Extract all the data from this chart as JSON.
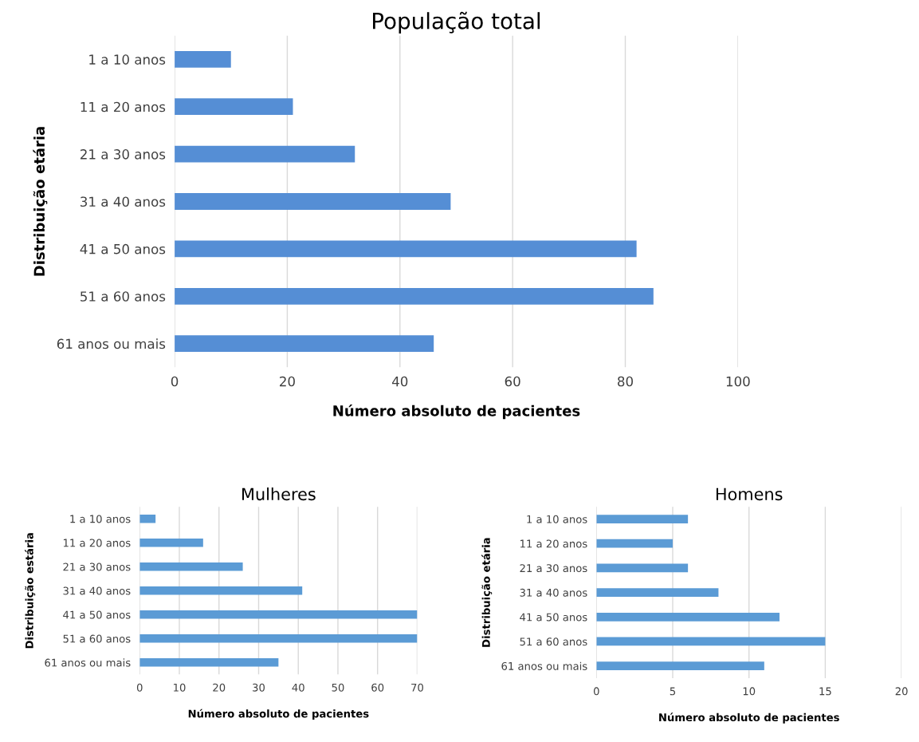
{
  "chart_data": [
    {
      "type": "bar",
      "orientation": "horizontal",
      "title": "População total",
      "xlabel": "Número absoluto de pacientes",
      "ylabel": "Distribuição etária",
      "categories": [
        "1 a 10 anos",
        "11 a 20 anos",
        "21 a 30 anos",
        "31 a 40 anos",
        "41 a 50 anos",
        "51 a 60 anos",
        "61 anos ou mais"
      ],
      "values": [
        10,
        21,
        32,
        49,
        82,
        85,
        46
      ],
      "color": "#558ed5",
      "xlim": [
        0,
        100
      ],
      "xticks": [
        0,
        20,
        40,
        60,
        80,
        100
      ],
      "grid": "x"
    },
    {
      "type": "bar",
      "orientation": "horizontal",
      "title": "Mulheres",
      "xlabel": "Número absoluto de pacientes",
      "ylabel": "Distribuição estária",
      "categories": [
        "1 a 10 anos",
        "11 a 20 anos",
        "21 a 30 anos",
        "31 a 40 anos",
        "41 a 50 anos",
        "51 a 60 anos",
        "61 anos ou mais"
      ],
      "values": [
        4,
        16,
        26,
        41,
        70,
        70,
        35
      ],
      "color": "#5b9bd5",
      "xlim": [
        0,
        70
      ],
      "xticks": [
        0,
        10,
        20,
        30,
        40,
        50,
        60,
        70
      ],
      "grid": "x"
    },
    {
      "type": "bar",
      "orientation": "horizontal",
      "title": "Homens",
      "xlabel": "Número absoluto de pacientes",
      "ylabel": "Distribuição etária",
      "categories": [
        "1 a 10 anos",
        "11 a 20 anos",
        "21 a 30 anos",
        "31 a 40 anos",
        "41 a 50 anos",
        "51 a 60 anos",
        "61 anos ou mais"
      ],
      "values": [
        6,
        5,
        6,
        8,
        12,
        15,
        11
      ],
      "color": "#5b9bd5",
      "xlim": [
        0,
        20
      ],
      "xticks": [
        0,
        5,
        10,
        15,
        20
      ],
      "grid": "x"
    }
  ]
}
